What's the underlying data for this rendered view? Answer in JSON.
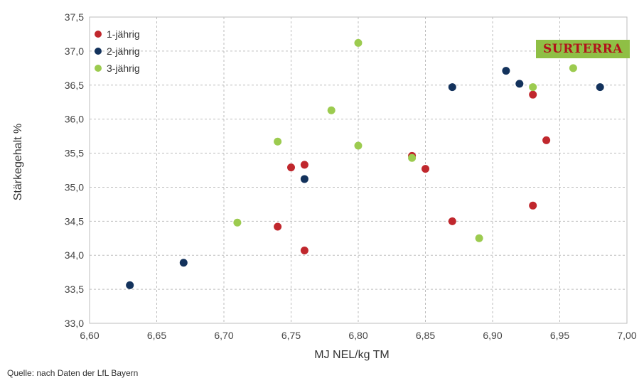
{
  "chart_data": {
    "type": "scatter",
    "xlabel": "MJ NEL/kg TM",
    "ylabel": "Stärkegehalt %",
    "xlim": [
      6.6,
      7.0
    ],
    "ylim": [
      33.0,
      37.5
    ],
    "x_ticks": [
      "6,60",
      "6,65",
      "6,70",
      "6,75",
      "6,80",
      "6,85",
      "6,90",
      "6,95",
      "7,00"
    ],
    "y_ticks": [
      "33,0",
      "33,5",
      "34,0",
      "34,5",
      "35,0",
      "35,5",
      "36,0",
      "36,5",
      "37,0",
      "37,5"
    ],
    "grid": true,
    "legend_position": "top-left",
    "series": [
      {
        "name": "1-jährig",
        "color": "#c0272d",
        "points": [
          [
            6.74,
            34.42
          ],
          [
            6.75,
            35.29
          ],
          [
            6.76,
            35.33
          ],
          [
            6.76,
            34.07
          ],
          [
            6.84,
            35.46
          ],
          [
            6.85,
            35.27
          ],
          [
            6.87,
            34.5
          ],
          [
            6.93,
            36.36
          ],
          [
            6.93,
            34.73
          ],
          [
            6.94,
            35.69
          ]
        ]
      },
      {
        "name": "2-jährig",
        "color": "#13325c",
        "points": [
          [
            6.63,
            33.56
          ],
          [
            6.67,
            33.89
          ],
          [
            6.76,
            35.12
          ],
          [
            6.87,
            36.47
          ],
          [
            6.91,
            36.71
          ],
          [
            6.92,
            36.52
          ],
          [
            6.98,
            36.47
          ]
        ]
      },
      {
        "name": "3-jährig",
        "color": "#9ccb4f",
        "points": [
          [
            6.71,
            34.48
          ],
          [
            6.74,
            35.67
          ],
          [
            6.78,
            36.13
          ],
          [
            6.8,
            35.61
          ],
          [
            6.8,
            37.12
          ],
          [
            6.84,
            35.43
          ],
          [
            6.89,
            34.25
          ],
          [
            6.93,
            36.47
          ],
          [
            6.96,
            36.75
          ]
        ]
      }
    ]
  },
  "brand_label": "SURTERRA",
  "source_note": "Quelle: nach Daten der LfL Bayern",
  "colors": {
    "grid": "#bdbdbd",
    "plot_background": "#ffffff",
    "brand_background": "#8fbf45",
    "brand_text": "#b0121b"
  }
}
